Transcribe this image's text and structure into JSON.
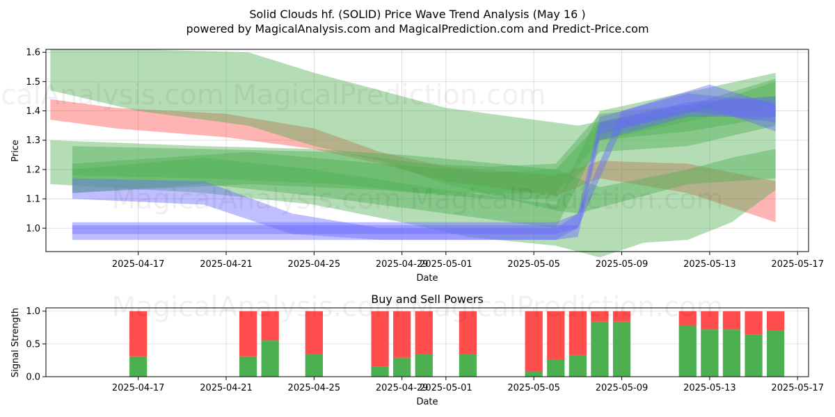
{
  "title": "Solid Clouds hf. (SOLID) Price Wave Trend Analysis (May 16 )",
  "subtitle": "powered by MagicalAnalysis.com and MagicalPrediction.com and Predict-Price.com",
  "watermark": "MagicalAnalysis.com    MagicalPrediction.com",
  "colors": {
    "green": "#4caf50",
    "red": "#ff4c4c",
    "blue": "#6666ff",
    "brown": "#8b6b3c"
  },
  "chart_data": [
    {
      "type": "area",
      "xlabel": "Date",
      "ylabel": "Price",
      "ylim": [
        0.92,
        1.61
      ],
      "xlim": [
        "2025-04-13",
        "2025-05-17"
      ],
      "x_ticks": [
        "2025-04-17",
        "2025-04-21",
        "2025-04-25",
        "2025-04-29",
        "2025-05-01",
        "2025-05-05",
        "2025-05-09",
        "2025-05-13",
        "2025-05-17"
      ],
      "y_ticks": [
        1.0,
        1.1,
        1.2,
        1.3,
        1.4,
        1.5,
        1.6
      ],
      "grid": true,
      "series": [
        {
          "color": "red",
          "bands": [
            {
              "x": [
                "2025-04-13",
                "2025-04-16",
                "2025-04-21",
                "2025-04-25",
                "2025-04-28",
                "2025-05-01",
                "2025-05-06",
                "2025-05-08",
                "2025-05-12",
                "2025-05-16"
              ],
              "upper": [
                1.44,
                1.41,
                1.39,
                1.34,
                1.26,
                1.21,
                1.18,
                1.23,
                1.22,
                1.16
              ],
              "lower": [
                1.37,
                1.34,
                1.31,
                1.27,
                1.22,
                1.16,
                1.11,
                1.17,
                1.12,
                1.02
              ]
            }
          ]
        },
        {
          "color": "green",
          "bands": [
            {
              "x": [
                "2025-04-13",
                "2025-04-17",
                "2025-04-22",
                "2025-04-25",
                "2025-04-28",
                "2025-05-01",
                "2025-05-06",
                "2025-05-07",
                "2025-05-12",
                "2025-05-16"
              ],
              "upper": [
                1.61,
                1.61,
                1.6,
                1.53,
                1.47,
                1.41,
                1.36,
                1.35,
                1.42,
                1.51
              ],
              "lower": [
                1.47,
                1.4,
                1.35,
                1.28,
                1.23,
                1.15,
                1.06,
                1.05,
                1.15,
                1.17
              ]
            },
            {
              "x": [
                "2025-04-13",
                "2025-04-20",
                "2025-04-25",
                "2025-04-29",
                "2025-05-02",
                "2025-05-06",
                "2025-05-08",
                "2025-05-10",
                "2025-05-12",
                "2025-05-14",
                "2025-05-16"
              ],
              "upper": [
                1.3,
                1.28,
                1.27,
                1.25,
                1.23,
                1.2,
                1.14,
                1.17,
                1.2,
                1.24,
                1.27
              ],
              "lower": [
                1.15,
                1.12,
                1.08,
                1.02,
                0.97,
                0.94,
                0.9,
                0.95,
                0.96,
                1.02,
                1.13
              ]
            },
            {
              "x": [
                "2025-04-14",
                "2025-04-22",
                "2025-04-28",
                "2025-05-03",
                "2025-05-06",
                "2025-05-08",
                "2025-05-12",
                "2025-05-16"
              ],
              "upper": [
                1.22,
                1.26,
                1.22,
                1.19,
                1.2,
                1.36,
                1.4,
                1.5
              ],
              "lower": [
                1.12,
                1.15,
                1.13,
                1.1,
                1.1,
                1.26,
                1.28,
                1.35
              ]
            },
            {
              "x": [
                "2025-04-14",
                "2025-04-20",
                "2025-04-26",
                "2025-04-30",
                "2025-05-03",
                "2025-05-06",
                "2025-05-08",
                "2025-05-12",
                "2025-05-16"
              ],
              "upper": [
                1.28,
                1.27,
                1.26,
                1.22,
                1.21,
                1.22,
                1.39,
                1.42,
                1.45
              ],
              "lower": [
                1.18,
                1.17,
                1.15,
                1.12,
                1.12,
                1.12,
                1.3,
                1.33,
                1.38
              ]
            },
            {
              "x": [
                "2025-04-14",
                "2025-04-20",
                "2025-04-25",
                "2025-05-01",
                "2025-05-06",
                "2025-05-08",
                "2025-05-13",
                "2025-05-16"
              ],
              "upper": [
                1.2,
                1.24,
                1.2,
                1.13,
                1.08,
                1.4,
                1.48,
                1.53
              ],
              "lower": [
                1.12,
                1.15,
                1.11,
                1.05,
                1.0,
                1.3,
                1.38,
                1.43
              ]
            }
          ]
        },
        {
          "color": "blue",
          "bands": [
            {
              "x": [
                "2025-04-14",
                "2025-05-06",
                "2025-05-07",
                "2025-05-08",
                "2025-05-12",
                "2025-05-16"
              ],
              "upper": [
                1.01,
                1.01,
                1.01,
                1.36,
                1.43,
                1.45
              ],
              "lower": [
                0.96,
                0.96,
                0.97,
                1.3,
                1.38,
                1.38
              ]
            },
            {
              "x": [
                "2025-04-14",
                "2025-04-20",
                "2025-04-24",
                "2025-04-28",
                "2025-05-06",
                "2025-05-07",
                "2025-05-08",
                "2025-05-12",
                "2025-05-16"
              ],
              "upper": [
                1.17,
                1.16,
                1.05,
                1.0,
                1.0,
                1.05,
                1.38,
                1.46,
                1.43
              ],
              "lower": [
                1.1,
                1.08,
                0.98,
                0.96,
                0.96,
                1.0,
                1.32,
                1.4,
                1.36
              ]
            },
            {
              "x": [
                "2025-04-14",
                "2025-05-06",
                "2025-05-07",
                "2025-05-09",
                "2025-05-13",
                "2025-05-16"
              ],
              "upper": [
                1.02,
                1.02,
                1.05,
                1.4,
                1.49,
                1.42
              ],
              "lower": [
                0.98,
                0.98,
                1.0,
                1.34,
                1.41,
                1.33
              ]
            }
          ]
        }
      ]
    },
    {
      "type": "bar",
      "title": "Buy and Sell Powers",
      "xlabel": "Date",
      "ylabel": "Signal Strength",
      "ylim": [
        0,
        1.05
      ],
      "y_ticks": [
        0.0,
        0.5,
        1.0
      ],
      "grid": true,
      "x_ticks": [
        "2025-04-17",
        "2025-04-21",
        "2025-04-25",
        "2025-04-29",
        "2025-05-01",
        "2025-05-05",
        "2025-05-09",
        "2025-05-13",
        "2025-05-17"
      ],
      "categories": [
        "2025-04-17",
        "2025-04-22",
        "2025-04-23",
        "2025-04-25",
        "2025-04-28",
        "2025-04-29",
        "2025-04-30",
        "2025-05-02",
        "2025-05-05",
        "2025-05-06",
        "2025-05-07",
        "2025-05-08",
        "2025-05-09",
        "2025-05-12",
        "2025-05-13",
        "2025-05-14",
        "2025-05-15",
        "2025-05-16"
      ],
      "series": [
        {
          "name": "Buy",
          "color": "green",
          "values": [
            0.31,
            0.31,
            0.55,
            0.35,
            0.15,
            0.29,
            0.35,
            0.35,
            0.08,
            0.26,
            0.33,
            0.84,
            0.84,
            0.78,
            0.72,
            0.72,
            0.64,
            0.71
          ]
        },
        {
          "name": "Sell",
          "color": "red",
          "values": [
            0.69,
            0.69,
            0.45,
            0.65,
            0.85,
            0.71,
            0.65,
            0.65,
            0.92,
            0.74,
            0.67,
            0.16,
            0.16,
            0.22,
            0.28,
            0.28,
            0.36,
            0.29
          ]
        }
      ]
    }
  ]
}
